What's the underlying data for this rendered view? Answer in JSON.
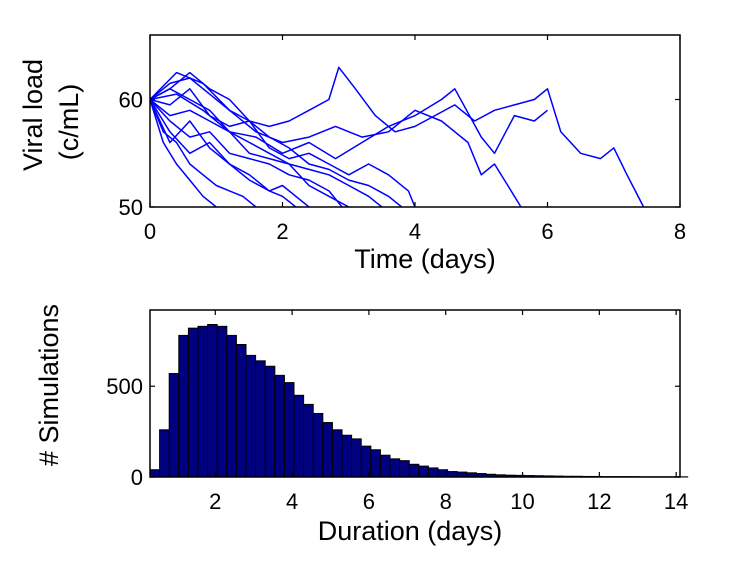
{
  "chart_data": [
    {
      "type": "line",
      "title": "",
      "xlabel": "Time (days)",
      "ylabel": [
        "Viral load",
        "(c/mL)"
      ],
      "xlim": [
        0,
        8
      ],
      "ylim": [
        50,
        66
      ],
      "xticks": [
        0,
        2,
        4,
        6,
        8
      ],
      "yticks": [
        50,
        60
      ],
      "grid": false,
      "legend": "none",
      "color": "#0000ff",
      "series": [
        {
          "x": [
            0,
            0.3,
            0.6,
            0.9,
            1.2,
            1.5,
            1.8,
            2.1,
            2.4,
            2.7,
            2.85,
            3.1,
            3.4,
            3.7,
            4.0,
            4.3,
            4.6,
            4.9,
            5.2,
            5.5,
            5.8,
            6.0,
            6.2,
            6.5,
            6.8,
            7.0,
            7.2,
            7.45
          ],
          "y": [
            60,
            61.5,
            62,
            60.5,
            59,
            58,
            57.5,
            58,
            59,
            60,
            63,
            61,
            58.5,
            57,
            57.5,
            58.5,
            59.5,
            58,
            59,
            59.5,
            60,
            61,
            57,
            55,
            54.5,
            55.5,
            53,
            50
          ]
        },
        {
          "x": [
            0,
            0.4,
            0.8,
            1.2,
            1.6,
            2.0,
            2.4,
            2.8,
            3.2,
            3.6,
            4.0,
            4.4,
            4.8,
            5.0,
            5.2,
            5.4,
            5.6
          ],
          "y": [
            60,
            62.5,
            61.5,
            59,
            57,
            56,
            56.5,
            57.5,
            56.5,
            57,
            59,
            58,
            56,
            53,
            54,
            52,
            50
          ]
        },
        {
          "x": [
            0,
            0.4,
            0.8,
            1.2,
            1.6,
            2.0,
            2.4,
            2.8,
            3.2,
            3.6,
            4.0,
            4.4,
            4.6,
            5.0,
            5.2,
            5.5,
            5.8,
            6.0
          ],
          "y": [
            60,
            60.5,
            59,
            57,
            56.5,
            55,
            56,
            54.5,
            56,
            57.5,
            58.5,
            60,
            61,
            56.5,
            55,
            58.5,
            58,
            59
          ]
        },
        {
          "x": [
            0,
            0.3,
            0.6,
            0.9,
            1.2,
            1.5,
            1.8,
            2.1,
            2.4,
            2.7,
            3.0,
            3.3,
            3.6,
            3.9,
            4.0
          ],
          "y": [
            60,
            61,
            62.5,
            61,
            60,
            58,
            55.5,
            54.5,
            55,
            54,
            53,
            54,
            53,
            51.5,
            50
          ]
        },
        {
          "x": [
            0,
            0.3,
            0.6,
            0.9,
            1.2,
            1.5,
            1.8,
            2.1,
            2.4,
            2.7,
            2.9
          ],
          "y": [
            60,
            58,
            56.5,
            57,
            55,
            54.5,
            54,
            53,
            52.5,
            51.5,
            50
          ]
        },
        {
          "x": [
            0,
            0.3,
            0.6,
            0.9,
            1.2,
            1.5,
            1.8,
            2.0,
            2.2,
            2.4
          ],
          "y": [
            60,
            57,
            55,
            56,
            54,
            52.5,
            51.5,
            52,
            51,
            50
          ]
        },
        {
          "x": [
            0,
            0.3,
            0.6,
            0.9,
            1.2,
            1.5,
            1.8,
            2.0,
            2.2
          ],
          "y": [
            60,
            56,
            58,
            55.5,
            54,
            53,
            51.5,
            51,
            50
          ]
        },
        {
          "x": [
            0,
            0.2,
            0.4,
            0.6,
            0.8,
            1.0,
            1.2,
            1.4,
            1.6
          ],
          "y": [
            60,
            57,
            56,
            54,
            53,
            52,
            51.5,
            51,
            50
          ]
        },
        {
          "x": [
            0,
            0.2,
            0.4,
            0.6,
            0.8,
            1.0
          ],
          "y": [
            60,
            56,
            54,
            52.5,
            51,
            50
          ]
        },
        {
          "x": [
            0,
            0.3,
            0.6,
            0.9,
            1.2,
            1.5,
            1.8,
            2.1,
            2.4,
            2.7,
            3.0,
            3.3,
            3.5
          ],
          "y": [
            60,
            61,
            60,
            59,
            57,
            56,
            55,
            54,
            53.5,
            53,
            52,
            51,
            50
          ]
        },
        {
          "x": [
            0,
            0.3,
            0.6,
            0.9,
            1.2,
            1.5,
            1.8,
            2.1,
            2.4,
            2.7,
            3.0,
            3.3,
            3.6,
            3.8
          ],
          "y": [
            60,
            59.5,
            61,
            58.5,
            57.5,
            58,
            56.5,
            55.5,
            54,
            53.5,
            52.5,
            52,
            51,
            50
          ]
        },
        {
          "x": [
            0,
            0.3,
            0.6,
            0.9,
            1.2,
            1.5,
            1.8,
            2.1,
            2.4,
            2.7,
            3.0
          ],
          "y": [
            60,
            58.5,
            59,
            58,
            57,
            55,
            54.5,
            54,
            52,
            51,
            50
          ]
        }
      ]
    },
    {
      "type": "bar",
      "title": "",
      "xlabel": "Duration (days)",
      "ylabel": "# Simulations",
      "xlim": [
        0.3,
        14.1
      ],
      "ylim": [
        0,
        920
      ],
      "xticks": [
        2,
        4,
        6,
        8,
        10,
        12,
        14
      ],
      "yticks": [
        0,
        500
      ],
      "grid": false,
      "legend": "none",
      "bar_color": "#000080",
      "bin_width": 0.25,
      "bin_start": 0.3,
      "values": [
        40,
        260,
        570,
        780,
        820,
        830,
        840,
        830,
        780,
        730,
        670,
        640,
        610,
        560,
        520,
        450,
        400,
        350,
        300,
        260,
        230,
        210,
        170,
        150,
        120,
        100,
        90,
        70,
        60,
        50,
        40,
        30,
        27,
        23,
        19,
        15,
        12,
        10,
        9,
        8,
        7,
        6,
        5,
        4,
        4,
        3,
        3,
        2,
        2,
        2,
        2,
        1,
        1,
        1,
        1,
        1
      ]
    }
  ]
}
